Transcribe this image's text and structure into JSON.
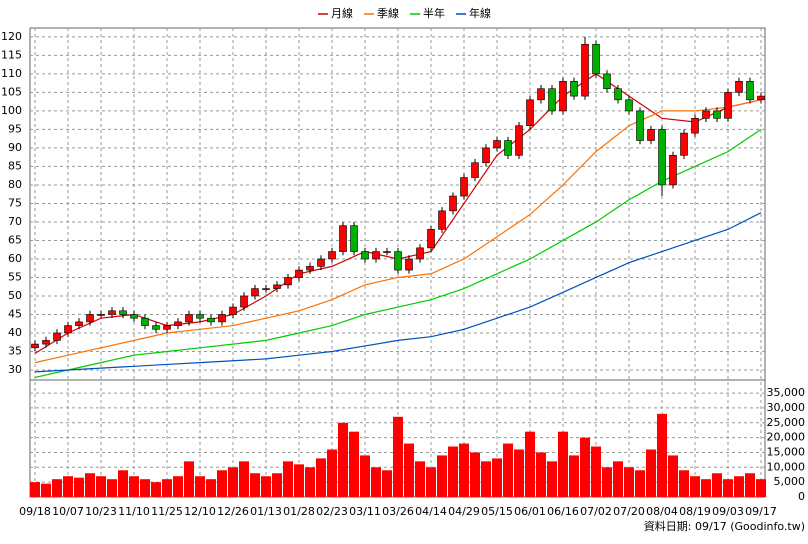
{
  "chart_data": [
    {
      "type": "candlestick",
      "legend": "top",
      "grid": true,
      "up_color": "#ff0000",
      "down_color": "#00b000",
      "categories": [
        "09/18",
        null,
        null,
        "10/07",
        null,
        null,
        "10/23",
        null,
        null,
        "11/10",
        null,
        null,
        "11/25",
        null,
        null,
        "12/10",
        null,
        null,
        "12/26",
        null,
        null,
        "01/13",
        null,
        null,
        "01/28",
        null,
        null,
        "02/23",
        null,
        null,
        "03/11",
        null,
        null,
        "03/26",
        null,
        null,
        "04/14",
        null,
        null,
        "04/29",
        null,
        null,
        "05/15",
        null,
        null,
        "06/01",
        null,
        null,
        "06/16",
        null,
        null,
        "07/02",
        null,
        null,
        "07/20",
        null,
        null,
        "08/04",
        null,
        null,
        "08/19",
        null,
        null,
        "09/03",
        null,
        null,
        "09/17"
      ],
      "open": [
        36,
        37,
        38,
        40,
        42,
        43,
        45,
        45,
        46,
        45,
        44,
        42,
        41,
        42,
        43,
        45,
        44,
        43,
        45,
        47,
        50,
        52,
        52,
        53,
        55,
        57,
        58,
        60,
        62,
        69,
        62,
        60,
        62,
        62,
        57,
        60,
        63,
        68,
        73,
        77,
        82,
        86,
        90,
        92,
        88,
        96,
        103,
        106,
        100,
        108,
        104,
        118,
        110,
        106,
        103,
        100,
        92,
        95,
        80,
        88,
        94,
        98,
        100,
        98,
        105,
        108,
        103
      ],
      "high": [
        38,
        39,
        41,
        43,
        44,
        46,
        46,
        47,
        47,
        46,
        45,
        43,
        43,
        44,
        46,
        46,
        45,
        46,
        48,
        51,
        53,
        53,
        54,
        56,
        58,
        59,
        61,
        63,
        70,
        70,
        63,
        63,
        63,
        63,
        61,
        64,
        69,
        74,
        78,
        83,
        87,
        91,
        93,
        93,
        97,
        104,
        107,
        107,
        109,
        109,
        120,
        119,
        111,
        107,
        104,
        101,
        96,
        96,
        89,
        95,
        99,
        101,
        101,
        106,
        109,
        109,
        105
      ],
      "low": [
        35,
        36,
        37,
        39,
        41,
        42,
        44,
        44,
        44,
        43,
        41,
        40,
        40,
        41,
        42,
        43,
        42,
        42,
        44,
        46,
        49,
        51,
        51,
        52,
        54,
        56,
        57,
        59,
        61,
        61,
        59,
        59,
        61,
        56,
        56,
        59,
        62,
        67,
        72,
        76,
        81,
        85,
        89,
        87,
        87,
        95,
        102,
        99,
        99,
        103,
        103,
        109,
        105,
        102,
        99,
        91,
        91,
        77,
        79,
        87,
        93,
        97,
        97,
        97,
        104,
        102,
        102
      ],
      "close": [
        37,
        38,
        40,
        42,
        43,
        45,
        45,
        46,
        45,
        44,
        42,
        41,
        42,
        43,
        45,
        44,
        43,
        45,
        47,
        50,
        52,
        52,
        53,
        55,
        57,
        58,
        60,
        62,
        69,
        62,
        60,
        62,
        62,
        57,
        60,
        63,
        68,
        73,
        77,
        82,
        86,
        90,
        92,
        88,
        96,
        103,
        106,
        100,
        108,
        104,
        118,
        110,
        106,
        103,
        100,
        92,
        95,
        80,
        88,
        94,
        98,
        100,
        98,
        105,
        108,
        103,
        104
      ],
      "series": [
        {
          "name": "月線",
          "color": "#d00000",
          "x": [
            0,
            3,
            6,
            9,
            12,
            15,
            18,
            21,
            24,
            27,
            30,
            33,
            36,
            39,
            42,
            45,
            48,
            51,
            54,
            57,
            60,
            63,
            66
          ],
          "values": [
            34.5,
            40,
            44,
            45,
            42,
            43,
            45,
            50,
            56,
            58,
            62,
            60,
            62,
            75,
            88,
            95,
            104,
            110,
            104,
            98,
            97,
            101,
            103
          ]
        },
        {
          "name": "季線",
          "color": "#ff7000",
          "x": [
            0,
            3,
            6,
            9,
            12,
            15,
            18,
            21,
            24,
            27,
            30,
            33,
            36,
            39,
            42,
            45,
            48,
            51,
            54,
            57,
            60,
            63,
            66
          ],
          "values": [
            32,
            34,
            36,
            38,
            40,
            41,
            42,
            44,
            46,
            49,
            53,
            55,
            56,
            60,
            66,
            72,
            80,
            89,
            96,
            100,
            100,
            101,
            103
          ]
        },
        {
          "name": "半年",
          "color": "#00cc00",
          "x": [
            0,
            3,
            6,
            9,
            12,
            15,
            18,
            21,
            24,
            27,
            30,
            33,
            36,
            39,
            42,
            45,
            48,
            51,
            54,
            57,
            60,
            63,
            66
          ],
          "values": [
            28,
            30,
            32,
            34,
            35,
            36,
            37,
            38,
            40,
            42,
            45,
            47,
            49,
            52,
            56,
            60,
            65,
            70,
            76,
            81,
            85,
            89,
            95
          ]
        },
        {
          "name": "年線",
          "color": "#0050c0",
          "x": [
            0,
            3,
            6,
            9,
            12,
            15,
            18,
            21,
            24,
            27,
            30,
            33,
            36,
            39,
            42,
            45,
            48,
            51,
            54,
            57,
            60,
            63,
            66
          ],
          "values": [
            29.5,
            30,
            30.5,
            31,
            31.5,
            32,
            32.5,
            33,
            34,
            35,
            36.5,
            38,
            39,
            41,
            44,
            47,
            51,
            55,
            59,
            62,
            65,
            68,
            72.5
          ]
        }
      ],
      "ylim": [
        27.3,
        122.4
      ],
      "yticks": [
        30,
        35,
        40,
        45,
        50,
        55,
        60,
        65,
        70,
        75,
        80,
        85,
        90,
        95,
        100,
        105,
        110,
        115,
        120
      ]
    },
    {
      "type": "bar",
      "color": "#ff0000",
      "grid": true,
      "values": [
        5000,
        4500,
        6000,
        7000,
        6500,
        8000,
        7000,
        6000,
        9000,
        7000,
        6000,
        5000,
        6000,
        7000,
        12000,
        7000,
        6000,
        9000,
        10000,
        12000,
        8000,
        7000,
        8000,
        12000,
        11000,
        10000,
        13000,
        16000,
        25000,
        22000,
        14000,
        10000,
        9000,
        27000,
        18000,
        12000,
        10000,
        14000,
        17000,
        18000,
        15000,
        12000,
        13000,
        18000,
        16000,
        22000,
        15000,
        12000,
        22000,
        14000,
        20000,
        17000,
        10000,
        12000,
        10000,
        9000,
        16000,
        28000,
        14000,
        9000,
        7000,
        6000,
        8000,
        6000,
        7000,
        8000,
        6000
      ],
      "ylim": [
        0,
        39400
      ],
      "yticks": [
        0,
        {
          "value": 5000,
          "label": "5,000"
        },
        {
          "value": 10000,
          "label": "10,000"
        },
        {
          "value": 15000,
          "label": "15,000"
        },
        {
          "value": 20000,
          "label": "20,000"
        },
        {
          "value": 25000,
          "label": "25,000"
        },
        {
          "value": 30000,
          "label": "30,000"
        },
        {
          "value": 35000,
          "label": "35,000"
        }
      ]
    }
  ],
  "footer": "資料日期: 09/17  (Goodinfo.tw)"
}
